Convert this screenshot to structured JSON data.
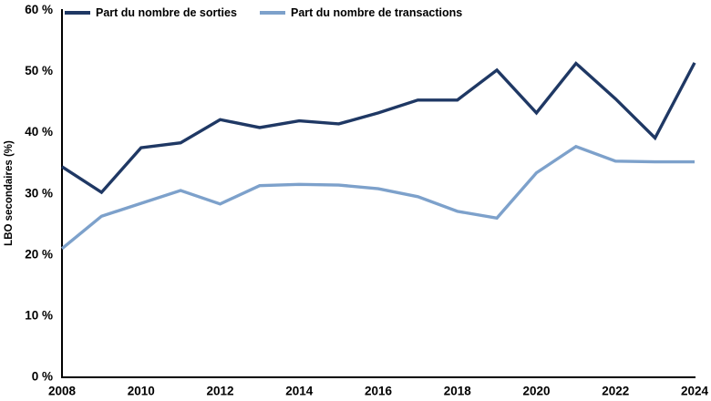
{
  "chart_data": {
    "type": "line",
    "title": "",
    "xlabel": "",
    "ylabel": "LBO secondaires (%)",
    "ylim": [
      0,
      60
    ],
    "ytick_step": 10,
    "ytick_labels": [
      "0 %",
      "10 %",
      "20 %",
      "30 %",
      "40 %",
      "50 %",
      "60 %"
    ],
    "x": [
      2008,
      2009,
      2010,
      2011,
      2012,
      2013,
      2014,
      2015,
      2016,
      2017,
      2018,
      2019,
      2020,
      2021,
      2022,
      2023,
      2024
    ],
    "xtick_labels": [
      "2008",
      "2010",
      "2012",
      "2014",
      "2016",
      "2018",
      "2020",
      "2022",
      "2024"
    ],
    "grid": false,
    "legend_position": "top",
    "background_color": "#ffffff",
    "axis_color": "#000000",
    "series": [
      {
        "name": "Part du nombre de sorties",
        "color": "#1f3864",
        "values": [
          34.3,
          30.1,
          37.4,
          38.2,
          42.0,
          40.7,
          41.8,
          41.3,
          43.1,
          45.2,
          45.2,
          50.1,
          43.1,
          51.2,
          45.4,
          39.0,
          51.3
        ]
      },
      {
        "name": "Part du nombre de transactions",
        "color": "#7da1cb",
        "values": [
          20.9,
          26.2,
          28.3,
          30.4,
          28.2,
          31.2,
          31.4,
          31.3,
          30.7,
          29.4,
          27.0,
          25.9,
          33.3,
          37.6,
          35.2,
          35.1,
          35.1
        ]
      }
    ]
  }
}
